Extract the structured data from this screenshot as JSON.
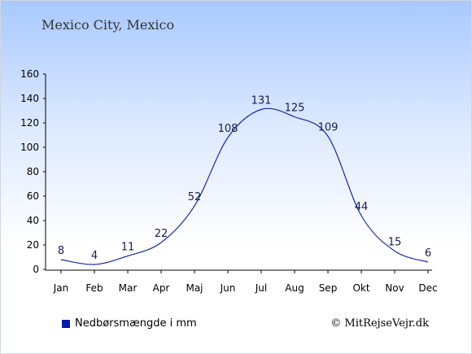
{
  "title": "Mexico City, Mexico",
  "credit": "© MitRejseVejr.dk",
  "colors": {
    "line": "#1a2aa0",
    "legend_swatch": "#0b1aa8"
  },
  "chart_data": {
    "type": "line",
    "categories": [
      "Jan",
      "Feb",
      "Mar",
      "Apr",
      "Maj",
      "Jun",
      "Jul",
      "Aug",
      "Sep",
      "Okt",
      "Nov",
      "Dec"
    ],
    "series": [
      {
        "name": "Nedbørsmængde i mm",
        "values": [
          8,
          4,
          11,
          22,
          52,
          108,
          131,
          125,
          109,
          44,
          15,
          6
        ]
      }
    ],
    "ylim": [
      0,
      160
    ],
    "yticks": [
      0,
      20,
      40,
      60,
      80,
      100,
      120,
      140,
      160
    ],
    "grid": false,
    "legend_position": "bottom-left"
  }
}
